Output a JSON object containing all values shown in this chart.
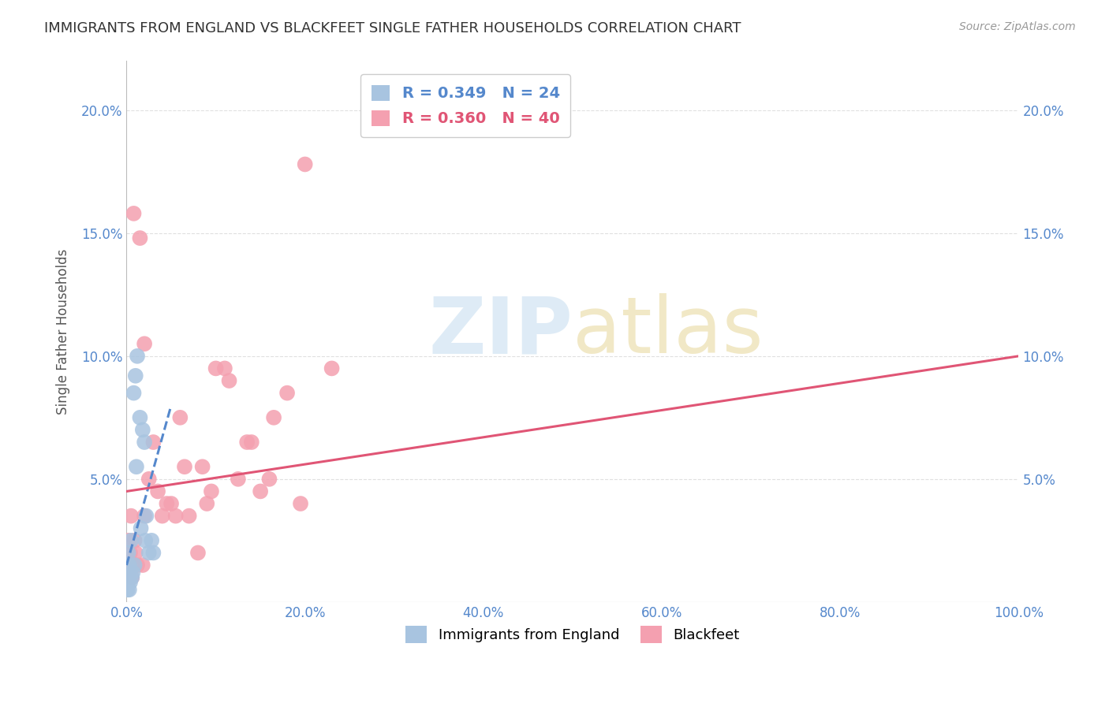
{
  "title": "IMMIGRANTS FROM ENGLAND VS BLACKFEET SINGLE FATHER HOUSEHOLDS CORRELATION CHART",
  "source": "Source: ZipAtlas.com",
  "ylabel": "Single Father Households",
  "xlabel": "",
  "legend_label_england": "Immigrants from England",
  "legend_label_blackfeet": "Blackfeet",
  "legend_r_england": "R = 0.349",
  "legend_n_england": "N = 24",
  "legend_r_blackfeet": "R = 0.360",
  "legend_n_blackfeet": "N = 40",
  "england_color": "#a8c4e0",
  "blackfeet_color": "#f4a0b0",
  "england_line_color": "#5588cc",
  "blackfeet_line_color": "#e05575",
  "england_x": [
    0.2,
    0.5,
    0.8,
    1.0,
    1.2,
    1.5,
    1.8,
    2.0,
    2.2,
    2.5,
    2.8,
    3.0,
    0.3,
    0.6,
    0.9,
    0.4,
    0.7,
    1.1,
    1.6,
    2.1,
    0.1,
    0.2,
    0.3,
    0.15
  ],
  "england_y": [
    2.0,
    2.5,
    8.5,
    9.2,
    10.0,
    7.5,
    7.0,
    6.5,
    3.5,
    2.0,
    2.5,
    2.0,
    0.5,
    1.0,
    1.5,
    0.8,
    1.2,
    5.5,
    3.0,
    2.5,
    0.5,
    1.0,
    1.5,
    0.8
  ],
  "blackfeet_x": [
    0.2,
    0.5,
    0.8,
    1.5,
    2.0,
    3.0,
    4.0,
    5.0,
    6.5,
    8.0,
    9.5,
    11.0,
    12.5,
    14.0,
    16.0,
    18.0,
    20.0,
    23.0,
    0.3,
    0.6,
    1.0,
    1.8,
    2.5,
    3.5,
    5.5,
    7.0,
    9.0,
    11.5,
    13.5,
    16.5,
    19.5,
    0.4,
    0.9,
    1.2,
    2.0,
    4.5,
    6.0,
    8.5,
    10.0,
    15.0
  ],
  "blackfeet_y": [
    2.5,
    3.5,
    15.8,
    14.8,
    10.5,
    6.5,
    3.5,
    4.0,
    5.5,
    2.0,
    4.5,
    9.5,
    5.0,
    6.5,
    5.0,
    8.5,
    17.8,
    9.5,
    1.5,
    1.0,
    2.0,
    1.5,
    5.0,
    4.5,
    3.5,
    3.5,
    4.0,
    9.0,
    6.5,
    7.5,
    4.0,
    2.0,
    2.5,
    1.5,
    3.5,
    4.0,
    7.5,
    5.5,
    9.5,
    4.5
  ],
  "xlim": [
    0,
    100
  ],
  "ylim": [
    0,
    22
  ],
  "yticks": [
    5,
    10,
    15,
    20
  ],
  "xticks": [
    0,
    20,
    40,
    60,
    80,
    100
  ],
  "background_color": "#ffffff",
  "grid_color": "#e0e0e0",
  "axis_label_color": "#5588cc",
  "title_color": "#333333",
  "blk_trend_x0": 0,
  "blk_trend_y0": 4.5,
  "blk_trend_x1": 100,
  "blk_trend_y1": 10.0,
  "eng_trend_x0": 0,
  "eng_trend_y0": 1.5,
  "eng_trend_x1": 5,
  "eng_trend_y1": 8.0
}
